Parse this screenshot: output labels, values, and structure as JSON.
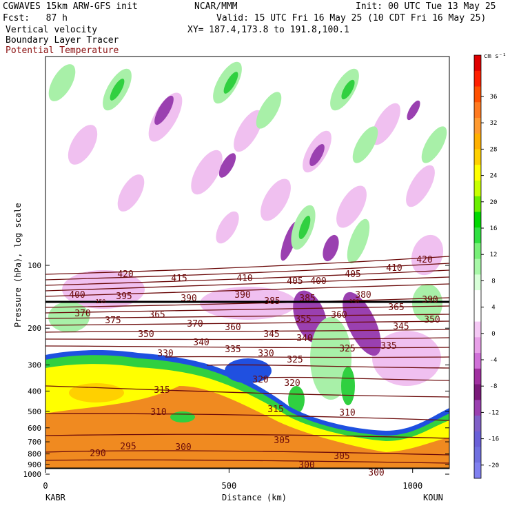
{
  "header": {
    "model": "CGWAVES 15km ARW-GFS init",
    "org": "NCAR/MMM",
    "init": "Init: 00 UTC Tue 13 May 25",
    "fcst": "Fcst:   87 h",
    "valid": "Valid: 15 UTC Fri 16 May 25 (10 CDT Fri 16 May 25)",
    "field1": "Vertical velocity",
    "field2": "Boundary Layer Tracer",
    "field3": "Potential Temperature",
    "xy": "XY= 187.4,173.8 to 191.8,100.1"
  },
  "colors": {
    "theta_contour": "#6b0a0a",
    "terrain": "#000000"
  },
  "chart_data": {
    "type": "heatmap",
    "title": "",
    "xlabel": "Distance (km)",
    "ylabel": "Pressure (hPa), log scale",
    "xlim": [
      0,
      1100
    ],
    "x_ticks": [
      "0",
      "500",
      "1000"
    ],
    "x_end_labels": [
      "KABR",
      "KOUN"
    ],
    "y_scale": "log",
    "y_ticks": [
      "100",
      "200",
      "300",
      "400",
      "500",
      "600",
      "700",
      "800",
      "900",
      "1000"
    ],
    "colorbar": {
      "unit": "cm s⁻¹",
      "tick_labels": [
        "36",
        "32",
        "28",
        "24",
        "20",
        "16",
        "12",
        "8",
        "4",
        "0",
        "-4",
        "-8",
        "-12",
        "-16",
        "-20"
      ],
      "colors": [
        "#e00000",
        "#ff2000",
        "#ff5000",
        "#ff7a20",
        "#ff9a30",
        "#ffb000",
        "#ffd000",
        "#ffff00",
        "#c8ff00",
        "#6aef00",
        "#00d800",
        "#30e040",
        "#78f078",
        "#a8f8a8",
        "#d8ffd8",
        "#ffffff",
        "#ffffff",
        "#f4c8f4",
        "#e8a0e8",
        "#d070d8",
        "#a030a0",
        "#7a1a7a",
        "#9a40b0",
        "#8060c8",
        "#6a60d8",
        "#7070e0",
        "#8080f0"
      ]
    },
    "theta_labels": [
      "420",
      "415",
      "410",
      "405",
      "400",
      "405",
      "410",
      "420",
      "400",
      "395",
      "390",
      "390",
      "385",
      "380",
      "385",
      "390",
      "370",
      "375",
      "365",
      "370",
      "360",
      "355",
      "360",
      "365",
      "350",
      "345",
      "340",
      "345",
      "335",
      "340",
      "350",
      "330",
      "325",
      "335",
      "330",
      "325",
      "320",
      "320",
      "315",
      "310",
      "315",
      "310",
      "305",
      "305",
      "300",
      "295",
      "290",
      "300",
      "300",
      "150",
      "150"
    ]
  }
}
